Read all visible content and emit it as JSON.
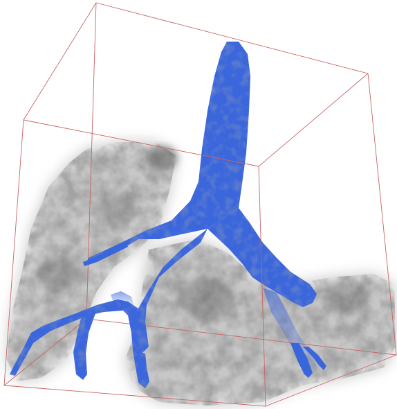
{
  "scene": {
    "background_color": "#ffffff",
    "bounding_box_color": "#c86464",
    "airway_color": "#3a66dc",
    "airway_shadow_color": "#2747a8",
    "lung_tissue_color": "#6e6e6e"
  }
}
